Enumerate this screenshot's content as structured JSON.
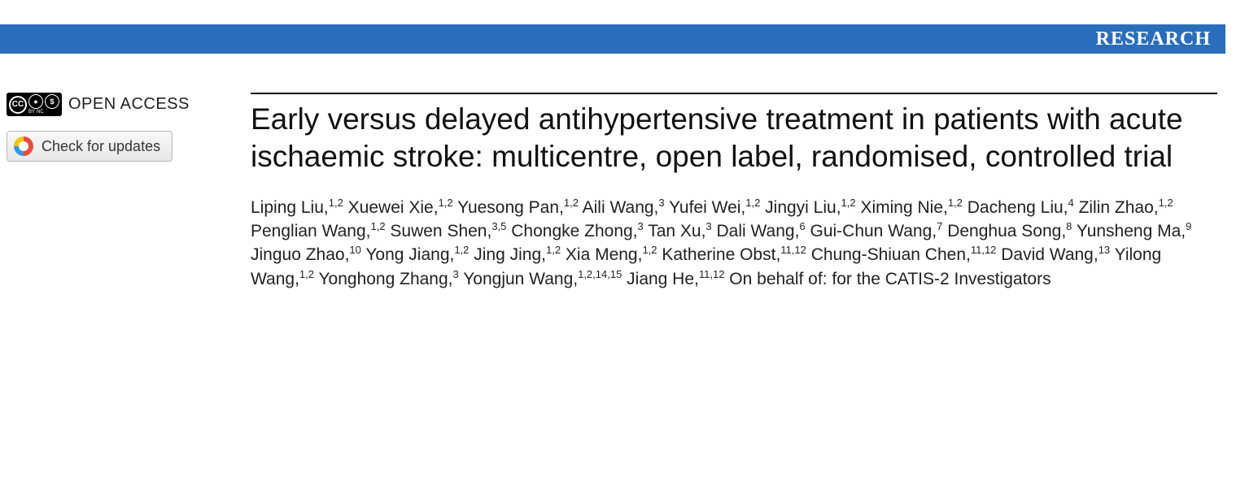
{
  "banner": {
    "label": "RESEARCH",
    "bg": "#2a6ebb",
    "fg": "#ffffff"
  },
  "sidebar": {
    "open_access_label": "OPEN ACCESS",
    "updates_label": "Check for updates"
  },
  "article": {
    "title": "Early versus delayed antihypertensive treatment in patients with acute ischaemic stroke: multicentre, open label, randomised, controlled trial",
    "authors": [
      {
        "name": "Liping Liu",
        "aff": "1,2"
      },
      {
        "name": "Xuewei Xie",
        "aff": "1,2"
      },
      {
        "name": "Yuesong Pan",
        "aff": "1,2"
      },
      {
        "name": "Aili Wang",
        "aff": "3"
      },
      {
        "name": "Yufei Wei",
        "aff": "1,2"
      },
      {
        "name": "Jingyi Liu",
        "aff": "1,2"
      },
      {
        "name": "Ximing Nie",
        "aff": "1,2"
      },
      {
        "name": "Dacheng Liu",
        "aff": "4"
      },
      {
        "name": "Zilin Zhao",
        "aff": "1,2"
      },
      {
        "name": "Penglian Wang",
        "aff": "1,2"
      },
      {
        "name": "Suwen Shen",
        "aff": "3,5"
      },
      {
        "name": "Chongke Zhong",
        "aff": "3"
      },
      {
        "name": "Tan Xu",
        "aff": "3"
      },
      {
        "name": "Dali Wang",
        "aff": "6"
      },
      {
        "name": "Gui-Chun Wang",
        "aff": "7"
      },
      {
        "name": "Denghua Song",
        "aff": "8"
      },
      {
        "name": "Yunsheng Ma",
        "aff": "9"
      },
      {
        "name": "Jinguo Zhao",
        "aff": "10"
      },
      {
        "name": "Yong Jiang",
        "aff": "1,2"
      },
      {
        "name": "Jing Jing",
        "aff": "1,2"
      },
      {
        "name": "Xia Meng",
        "aff": "1,2"
      },
      {
        "name": "Katherine Obst",
        "aff": "11,12"
      },
      {
        "name": "Chung-Shiuan Chen",
        "aff": "11,12"
      },
      {
        "name": "David Wang",
        "aff": "13"
      },
      {
        "name": "Yilong Wang",
        "aff": "1,2"
      },
      {
        "name": "Yonghong Zhang",
        "aff": "3"
      },
      {
        "name": "Yongjun Wang",
        "aff": "1,2,14,15"
      },
      {
        "name": "Jiang He",
        "aff": "11,12"
      }
    ],
    "behalf": "On behalf of: for the CATIS-2 Investigators"
  }
}
